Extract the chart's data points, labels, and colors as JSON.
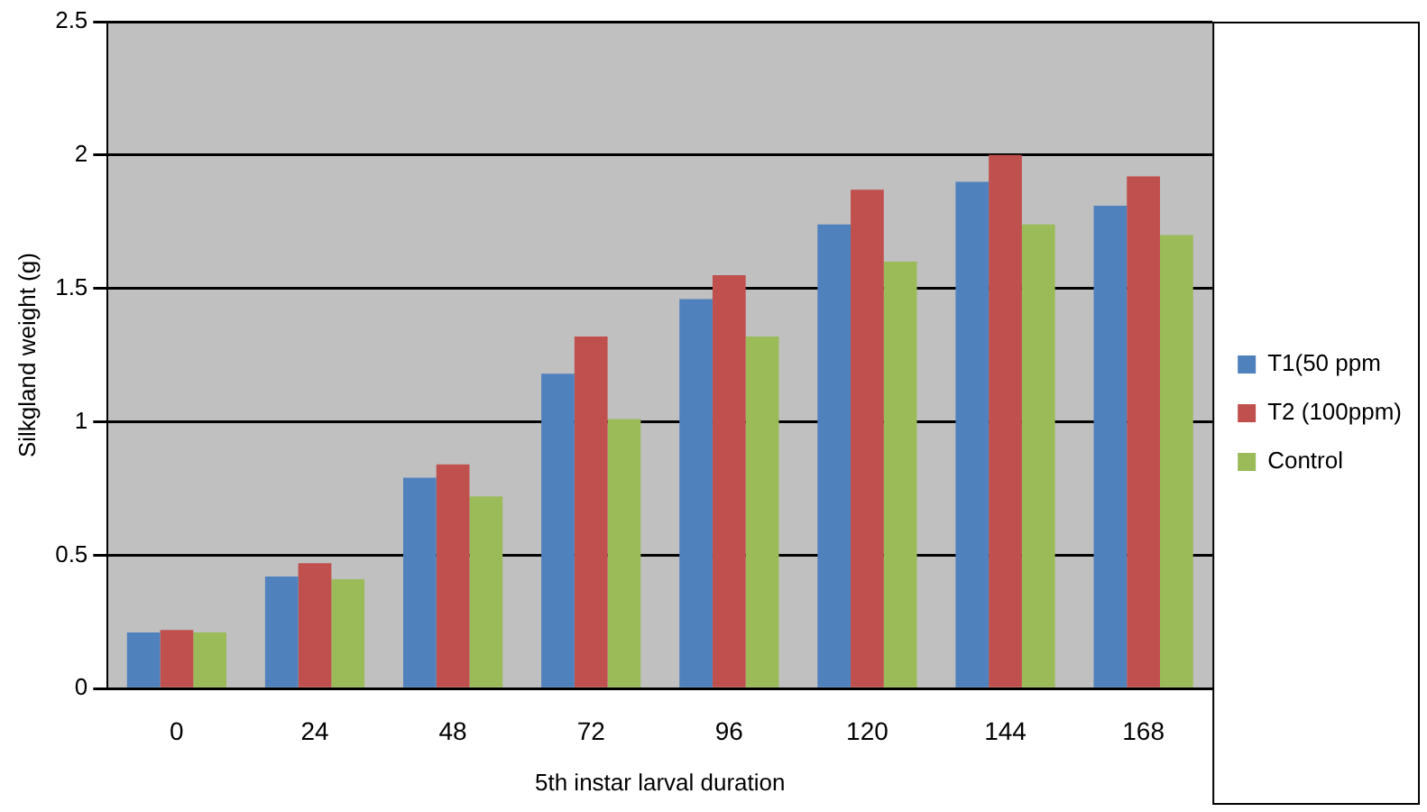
{
  "chart_data": {
    "type": "bar",
    "xlabel": "5th instar larval duration",
    "ylabel": "Silkgland weight (g)",
    "categories": [
      "0",
      "24",
      "48",
      "72",
      "96",
      "120",
      "144",
      "168"
    ],
    "series": [
      {
        "name": "T1(50 ppm",
        "color": "#4f81bd",
        "values": [
          0.21,
          0.42,
          0.79,
          1.18,
          1.46,
          1.74,
          1.9,
          1.81
        ]
      },
      {
        "name": "T2 (100ppm)",
        "color": "#c0504d",
        "values": [
          0.22,
          0.47,
          0.84,
          1.32,
          1.55,
          1.87,
          2.0,
          1.92
        ]
      },
      {
        "name": "Control",
        "color": "#9bbb59",
        "values": [
          0.21,
          0.41,
          0.72,
          1.01,
          1.32,
          1.6,
          1.74,
          1.7
        ]
      }
    ],
    "ylim": [
      0,
      2.5
    ],
    "yticks": [
      0,
      0.5,
      1,
      1.5,
      2,
      2.5
    ],
    "grid": "y",
    "legend": "right"
  }
}
